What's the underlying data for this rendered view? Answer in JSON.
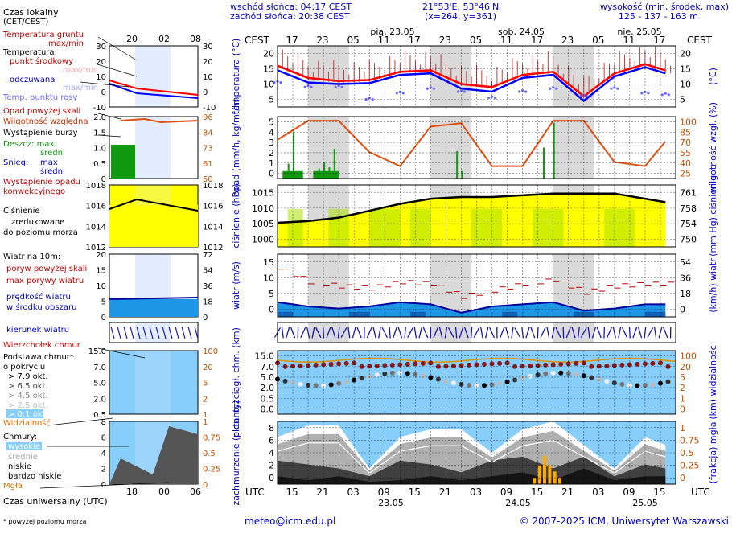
{
  "header": {
    "sunrise": "wschód słońca: 04:17 CEST",
    "sunset": "zachód słońca: 20:38 CEST",
    "coords": "21°53'E, 53°46'N",
    "grid": "(x=264,  y=361)",
    "elev_title": "wysokość (min, środek, max)",
    "elev_values": "125 - 137 - 163 m",
    "tz_top": "CEST",
    "tz_bottom": "UTC",
    "days_top": [
      "pią, 23.05",
      "sob, 24.05",
      "nie, 25.05"
    ],
    "days_bottom": [
      "23.05",
      "24.05",
      "25.05"
    ]
  },
  "colors": {
    "temp_line": "#ff0000",
    "perceived_line": "#0000ff",
    "dew_points": "#6a6aff",
    "humidity_line": "#e05010",
    "precip_bars": "#119911",
    "pressure_fill": "#ffff00",
    "pressure_line": "#000000",
    "wind_fill": "#1e96e6",
    "cloud_bg": "#87cefa",
    "fog_bars": "#ffaa00",
    "night_band": "#d3d3d3"
  },
  "legend": {
    "local_time": "Czas lokalny",
    "local_time_sub": "(CET/CEST)",
    "utc_time": "Czas uniwersalny (UTC)",
    "footnote": "* powyżej poziomu morza",
    "temp": [
      "Temperatura gruntu",
      "max/min",
      "Temperatura:",
      "punkt środkowy",
      "max/min",
      "odczuwana",
      "max/min",
      "Temp. punktu rosy"
    ],
    "precip": [
      "Opad powyżej skali",
      "Wilgotność względna",
      "Wystąpienie burzy",
      "Deszcz: max",
      "średni",
      "Śnieg:",
      "max",
      "średni",
      "Wystąpienie opadu",
      "konwekcyjnego"
    ],
    "pressure": [
      "Ciśnienie",
      "zredukowane",
      "do poziomu morza"
    ],
    "wind": [
      "Wiatr na 10m:",
      "poryw powyżej skali",
      "max porywy wiatru",
      "prędkość wiatru",
      "w środku obszaru"
    ],
    "direction": [
      "kierunek wiatru"
    ],
    "clouds": [
      "Wierzchołek chmur",
      "Podstawa chmur*",
      "o pokryciu",
      "> 7.9 okt.",
      "> 6.5 okt.",
      "> 4.5 okt.",
      "> 2.5 okt.",
      "> 0.1 okt.",
      "Widzialność"
    ],
    "cover": [
      "Chmury:",
      "wysokie",
      "średnie",
      "niskie",
      "bardzo niskie",
      "Mgła"
    ],
    "legend_ticks_top": [
      "20",
      "02",
      "08"
    ],
    "legend_ticks_bottom": [
      "18",
      "00",
      "06"
    ]
  },
  "footer": {
    "email": "meteo@icm.edu.pl",
    "copyright": "© 2007-2025 ICM, Uniwersytet Warszawski"
  },
  "chart_data": {
    "type": "line",
    "time_top_cest": [
      "17",
      "23",
      "05",
      "11",
      "17",
      "23",
      "05",
      "11",
      "17",
      "23",
      "05",
      "11",
      "17"
    ],
    "time_bottom_utc": [
      "15",
      "21",
      "03",
      "09",
      "15",
      "21",
      "03",
      "09",
      "15",
      "21",
      "03",
      "09",
      "15"
    ],
    "panels": [
      {
        "name": "temperature",
        "ylabel": "temperatura (°C)",
        "ylabel_right": "(°C)",
        "yticks": [
          "20",
          "15",
          "10",
          "5"
        ],
        "yticks_right": [
          "20",
          "15",
          "10",
          "5"
        ],
        "ylim": [
          2,
          22
        ],
        "series": [
          {
            "name": "punkt środkowy",
            "x": [
              0,
              6,
              12,
              18,
              24,
              30,
              36,
              42,
              48,
              54,
              60,
              66,
              72,
              76
            ],
            "values": [
              15.5,
              11.5,
              10.5,
              10.8,
              13.5,
              14,
              9.5,
              8.5,
              12.5,
              13.5,
              5.5,
              13,
              16,
              14
            ]
          },
          {
            "name": "odczuwana",
            "x": [
              0,
              6,
              12,
              18,
              24,
              30,
              36,
              42,
              48,
              54,
              60,
              66,
              72,
              76
            ],
            "values": [
              14,
              10,
              9.5,
              9.8,
              12.5,
              13,
              8,
              7,
              11.5,
              12.5,
              4,
              12,
              15,
              13
            ]
          },
          {
            "name": "Temp. punktu rosy",
            "x": [
              0,
              6,
              12,
              18,
              24,
              30,
              36,
              42,
              48,
              54,
              60,
              66,
              72,
              76
            ],
            "values": [
              10,
              8.5,
              8.5,
              4.5,
              6.5,
              8,
              7,
              5,
              7,
              8,
              5.5,
              8,
              6.5,
              6
            ]
          }
        ]
      },
      {
        "name": "precipitation",
        "ylabel": "opad (mm/h, kg/m²/h)",
        "ylabel_right": "wilgotność wzgl. (%)",
        "yticks": [
          "5",
          "4",
          "3",
          "2",
          "1",
          "0"
        ],
        "yticks_right": [
          "100",
          "85",
          "70",
          "55",
          "40",
          "25"
        ],
        "ylim": [
          0,
          5
        ],
        "ylim_right": [
          25,
          100
        ],
        "series": [
          {
            "name": "Wilgotność względna",
            "x": [
              0,
              6,
              12,
              18,
              24,
              30,
              36,
              42,
              48,
              54,
              60,
              66,
              72,
              76
            ],
            "values": [
              72,
              95,
              95,
              57,
              40,
              88,
              92,
              40,
              40,
              95,
              95,
              45,
              40,
              70
            ]
          },
          {
            "name": "Deszcz max",
            "x": [
              1,
              2,
              3,
              4,
              7,
              8,
              9,
              10,
              11,
              35,
              36,
              52,
              54
            ],
            "values": [
              0.4,
              1.2,
              3.8,
              0.6,
              0.5,
              0.8,
              1.3,
              0.9,
              2.4,
              2.2,
              0.6,
              2.5,
              4.5
            ]
          }
        ]
      },
      {
        "name": "pressure",
        "ylabel": "ciśnienie (hPa)",
        "ylabel_right": "(mm Hg) ciśnienie",
        "yticks": [
          "1015",
          "1010",
          "1005",
          "1000"
        ],
        "yticks_right": [
          "761",
          "758",
          "754",
          "750"
        ],
        "ylim": [
          1000,
          1018
        ],
        "series": [
          {
            "name": "Ciśnienie",
            "x": [
              0,
              6,
              12,
              18,
              24,
              30,
              36,
              42,
              48,
              54,
              60,
              66,
              72,
              76
            ],
            "values": [
              1007,
              1007.5,
              1008.5,
              1010.5,
              1012.5,
              1014,
              1014.5,
              1014.5,
              1015,
              1015.5,
              1015.5,
              1015.5,
              1014,
              1013
            ]
          }
        ]
      },
      {
        "name": "wind",
        "ylabel": "wiatr (m/s)",
        "ylabel_right": "(km/h) wiatr",
        "yticks": [
          "15",
          "10",
          "5",
          "0"
        ],
        "yticks_right": [
          "54",
          "36",
          "18",
          "0"
        ],
        "ylim": [
          0,
          15
        ],
        "series": [
          {
            "name": "prędkość wiatru",
            "x": [
              0,
              6,
              12,
              18,
              24,
              30,
              36,
              42,
              48,
              54,
              60,
              66,
              72,
              76
            ],
            "values": [
              3.5,
              2.5,
              2,
              2.5,
              3.5,
              3,
              1,
              2.5,
              3,
              3.5,
              1.5,
              2,
              3,
              3
            ]
          },
          {
            "name": "max porywy wiatru",
            "x": [
              0,
              6,
              12,
              18,
              24,
              30,
              36,
              42,
              48,
              54,
              60,
              66,
              72,
              76
            ],
            "values": [
              12,
              8.5,
              7.5,
              7,
              8.5,
              8,
              5,
              6.5,
              8,
              9,
              6,
              7.5,
              8,
              8
            ]
          }
        ]
      },
      {
        "name": "clouds",
        "ylabel": "pion. rozciągł. chm. (km)",
        "ylabel_right": "(km) widzialność",
        "yticks": [
          "15.0",
          "7.0",
          "5.0",
          "2.0",
          "0.5",
          "0.0"
        ],
        "yticks_right": [
          "100",
          "20",
          "5",
          "2",
          "1",
          "0"
        ],
        "series": [
          {
            "name": "Widzialność",
            "x": [
              0,
              6,
              12,
              18,
              24,
              30,
              36,
              42,
              48,
              54,
              60,
              66,
              72,
              76
            ],
            "values": [
              20,
              18,
              10,
              20,
              20,
              20,
              20,
              20,
              20,
              10,
              20,
              20,
              20,
              20
            ]
          }
        ]
      },
      {
        "name": "cloud_cover",
        "ylabel": "zachmurzenie (oktanty)",
        "ylabel_right": "(frakcja) mgła",
        "yticks": [
          "8",
          "6",
          "4",
          "2",
          "0"
        ],
        "yticks_right": [
          "1",
          "0.75",
          "0.5",
          "0.25",
          "0"
        ],
        "ylim": [
          0,
          8
        ],
        "series": [
          {
            "name": "wysokie",
            "x": [
              0,
              6,
              12,
              18,
              24,
              30,
              36,
              42,
              48,
              54,
              60,
              66,
              72,
              76
            ],
            "values": [
              6,
              7.5,
              7.5,
              2,
              6,
              7,
              7,
              4,
              7,
              8,
              5,
              2,
              6,
              5
            ]
          },
          {
            "name": "Mgła",
            "x": [
              50,
              51,
              52,
              53,
              54,
              55
            ],
            "values": [
              0.1,
              0.3,
              0.45,
              0.3,
              0.2,
              0.1
            ]
          }
        ]
      }
    ]
  }
}
